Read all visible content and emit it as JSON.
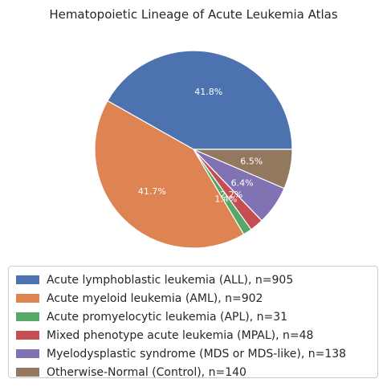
{
  "chart_data": {
    "type": "pie",
    "title": "Hematopoietic Lineage of Acute Leukemia Atlas",
    "slices": [
      {
        "label": "Acute lymphoblastic leukemia (ALL), n=905",
        "value": 905,
        "pct_label": "41.8%",
        "color": "#4c72b0"
      },
      {
        "label": "Acute myeloid leukemia (AML), n=902",
        "value": 902,
        "pct_label": "41.7%",
        "color": "#dd8452"
      },
      {
        "label": "Acute promyelocytic leukemia (APL), n=31",
        "value": 31,
        "pct_label": "1.4%",
        "color": "#55a868"
      },
      {
        "label": "Mixed phenotype acute leukemia (MPAL), n=48",
        "value": 48,
        "pct_label": "2.2%",
        "color": "#c44e52"
      },
      {
        "label": "Myelodysplastic syndrome (MDS or MDS-like), n=138",
        "value": 138,
        "pct_label": "6.4%",
        "color": "#8172b3"
      },
      {
        "label": "Otherwise-Normal (Control), n=140",
        "value": 140,
        "pct_label": "6.5%",
        "color": "#937860"
      }
    ],
    "start_angle": 0,
    "direction": "counterclockwise",
    "legend_position": "bottom"
  }
}
